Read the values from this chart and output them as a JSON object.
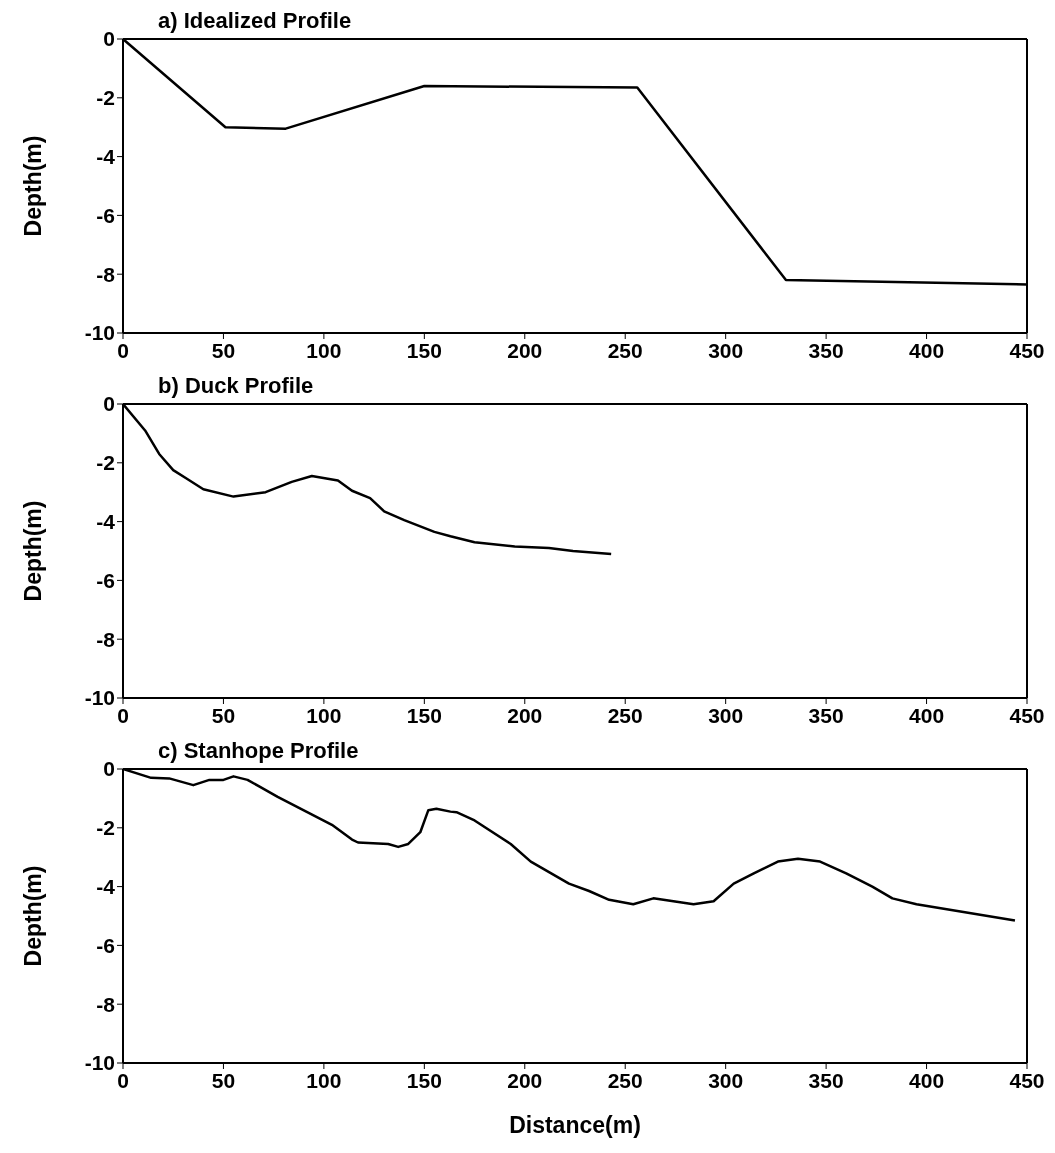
{
  "chart_data": [
    {
      "type": "line",
      "title": "a) Idealized Profile",
      "ylabel": "Depth(m)",
      "xlim": [
        0,
        450
      ],
      "ylim": [
        -10,
        0
      ],
      "xticks": [
        0,
        50,
        100,
        150,
        200,
        250,
        300,
        350,
        400,
        450
      ],
      "yticks": [
        -10,
        -8,
        -6,
        -4,
        -2,
        0
      ],
      "grid": false,
      "marker": "none",
      "line_style": "solid",
      "series": [
        {
          "color": "#000000",
          "x": [
            0,
            51,
            81,
            150,
            256,
            330,
            450
          ],
          "values": [
            0,
            -3,
            -3.05,
            -1.6,
            -1.65,
            -8.2,
            -8.35
          ]
        }
      ]
    },
    {
      "type": "line",
      "title": "b) Duck Profile",
      "ylabel": "Depth(m)",
      "xlim": [
        0,
        450
      ],
      "ylim": [
        -10,
        0
      ],
      "xticks": [
        0,
        50,
        100,
        150,
        200,
        250,
        300,
        350,
        400,
        450
      ],
      "yticks": [
        -10,
        -8,
        -6,
        -4,
        -2,
        0
      ],
      "grid": false,
      "marker": "none",
      "line_style": "solid",
      "series": [
        {
          "color": "#000000",
          "x": [
            0,
            11,
            18,
            25,
            32,
            40,
            55,
            71,
            84,
            94,
            107,
            114,
            123,
            130,
            140,
            155,
            163,
            175,
            195,
            212,
            224,
            243
          ],
          "values": [
            0,
            -0.9,
            -1.7,
            -2.25,
            -2.55,
            -2.9,
            -3.15,
            -3,
            -2.65,
            -2.45,
            -2.6,
            -2.95,
            -3.2,
            -3.65,
            -3.95,
            -4.35,
            -4.5,
            -4.7,
            -4.85,
            -4.9,
            -5,
            -5.1
          ]
        }
      ]
    },
    {
      "type": "line",
      "title": "c) Stanhope Profile",
      "xlabel": "Distance(m)",
      "ylabel": "Depth(m)",
      "xlim": [
        0,
        450
      ],
      "ylim": [
        -10,
        0
      ],
      "xticks": [
        0,
        50,
        100,
        150,
        200,
        250,
        300,
        350,
        400,
        450
      ],
      "yticks": [
        -10,
        -8,
        -6,
        -4,
        -2,
        0
      ],
      "grid": false,
      "marker": "none",
      "line_style": "solid",
      "series": [
        {
          "color": "#000000",
          "x": [
            0,
            14,
            23,
            35,
            43,
            50,
            55,
            62,
            68,
            77,
            104,
            114,
            117,
            132,
            137,
            142,
            148,
            152,
            156,
            163,
            166,
            175,
            193,
            203,
            222,
            232,
            242,
            254,
            264,
            284,
            294,
            304,
            314,
            326,
            336,
            347,
            360,
            373,
            383,
            395,
            444
          ],
          "values": [
            0,
            -0.3,
            -0.32,
            -0.55,
            -0.37,
            -0.37,
            -0.25,
            -0.37,
            -0.6,
            -0.95,
            -1.9,
            -2.4,
            -2.5,
            -2.55,
            -2.65,
            -2.55,
            -2.15,
            -1.4,
            -1.35,
            -1.45,
            -1.47,
            -1.75,
            -2.55,
            -3.15,
            -3.9,
            -4.15,
            -4.45,
            -4.6,
            -4.4,
            -4.6,
            -4.5,
            -3.9,
            -3.55,
            -3.15,
            -3.05,
            -3.15,
            -3.55,
            -4,
            -4.4,
            -4.6,
            -5.15
          ]
        }
      ]
    }
  ]
}
